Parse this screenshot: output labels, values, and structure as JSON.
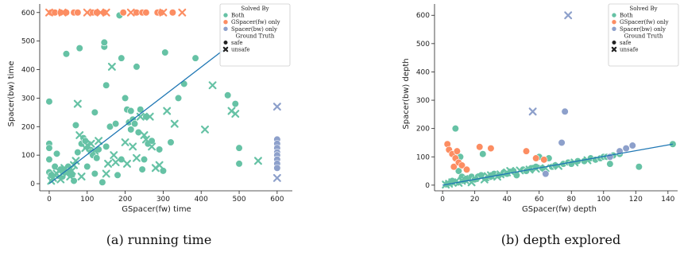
{
  "colors": {
    "both": "#66c2a5",
    "gspacer_only": "#fc8d62",
    "spacer_only": "#8da0cb",
    "regression": "#1f77b4",
    "axis": "#222222",
    "legend_border": "#cccccc"
  },
  "legend": {
    "title": "Solved By",
    "entries": [
      "Both",
      "GSpacer(fw) only",
      "Spacer(bw) only"
    ],
    "subtitle": "Ground Truth",
    "markers": [
      "safe",
      "unsafe"
    ]
  },
  "captions": [
    "(a)  running time",
    "(b)  depth explored"
  ],
  "chart_data": [
    {
      "type": "scatter",
      "title": "",
      "xlabel": "GSpacer(fw) time",
      "ylabel": "Spacer(bw) time",
      "xlim": [
        -25,
        640
      ],
      "ylim": [
        -25,
        630
      ],
      "xticks": [
        0,
        100,
        200,
        300,
        400,
        500,
        600
      ],
      "yticks": [
        0,
        100,
        200,
        300,
        400,
        500,
        600
      ],
      "regression": [
        [
          0,
          0
        ],
        [
          460,
          470
        ]
      ],
      "series": [
        {
          "name": "Both",
          "marker": "safe",
          "color_key": "both",
          "points": [
            [
              0,
              288
            ],
            [
              0,
              140
            ],
            [
              0,
              125
            ],
            [
              0,
              85
            ],
            [
              0,
              40
            ],
            [
              5,
              30
            ],
            [
              15,
              60
            ],
            [
              20,
              105
            ],
            [
              30,
              50
            ],
            [
              35,
              25
            ],
            [
              40,
              40
            ],
            [
              45,
              455
            ],
            [
              50,
              60
            ],
            [
              55,
              45
            ],
            [
              60,
              30
            ],
            [
              65,
              10
            ],
            [
              70,
              205
            ],
            [
              75,
              110
            ],
            [
              80,
              475
            ],
            [
              85,
              140
            ],
            [
              90,
              160
            ],
            [
              95,
              150
            ],
            [
              100,
              60
            ],
            [
              105,
              120
            ],
            [
              110,
              110
            ],
            [
              115,
              100
            ],
            [
              120,
              250
            ],
            [
              120,
              35
            ],
            [
              125,
              90
            ],
            [
              130,
              120
            ],
            [
              140,
              5
            ],
            [
              145,
              480
            ],
            [
              145,
              495
            ],
            [
              150,
              345
            ],
            [
              150,
              130
            ],
            [
              160,
              200
            ],
            [
              175,
              210
            ],
            [
              180,
              30
            ],
            [
              185,
              590
            ],
            [
              190,
              440
            ],
            [
              190,
              85
            ],
            [
              200,
              300
            ],
            [
              205,
              260
            ],
            [
              210,
              215
            ],
            [
              215,
              190
            ],
            [
              215,
              255
            ],
            [
              220,
              225
            ],
            [
              225,
              210
            ],
            [
              230,
              410
            ],
            [
              235,
              180
            ],
            [
              240,
              260
            ],
            [
              245,
              50
            ],
            [
              250,
              85
            ],
            [
              255,
              235
            ],
            [
              260,
              140
            ],
            [
              270,
              150
            ],
            [
              290,
              120
            ],
            [
              300,
              45
            ],
            [
              305,
              460
            ],
            [
              320,
              145
            ],
            [
              340,
              300
            ],
            [
              355,
              350
            ],
            [
              385,
              440
            ],
            [
              470,
              310
            ],
            [
              490,
              280
            ],
            [
              500,
              125
            ],
            [
              500,
              70
            ]
          ]
        },
        {
          "name": "Both",
          "marker": "unsafe",
          "color_key": "both",
          "points": [
            [
              5,
              10
            ],
            [
              10,
              20
            ],
            [
              15,
              30
            ],
            [
              20,
              35
            ],
            [
              25,
              45
            ],
            [
              30,
              15
            ],
            [
              40,
              55
            ],
            [
              45,
              35
            ],
            [
              55,
              25
            ],
            [
              60,
              45
            ],
            [
              65,
              65
            ],
            [
              70,
              80
            ],
            [
              75,
              280
            ],
            [
              80,
              170
            ],
            [
              85,
              25
            ],
            [
              95,
              125
            ],
            [
              100,
              135
            ],
            [
              110,
              140
            ],
            [
              120,
              115
            ],
            [
              130,
              150
            ],
            [
              150,
              35
            ],
            [
              155,
              70
            ],
            [
              165,
              410
            ],
            [
              170,
              100
            ],
            [
              175,
              75
            ],
            [
              200,
              145
            ],
            [
              205,
              70
            ],
            [
              220,
              130
            ],
            [
              230,
              90
            ],
            [
              240,
              235
            ],
            [
              250,
              170
            ],
            [
              255,
              155
            ],
            [
              265,
              235
            ],
            [
              270,
              130
            ],
            [
              280,
              55
            ],
            [
              290,
              65
            ],
            [
              310,
              255
            ],
            [
              330,
              210
            ],
            [
              410,
              190
            ],
            [
              430,
              345
            ],
            [
              480,
              255
            ],
            [
              490,
              245
            ],
            [
              550,
              80
            ]
          ]
        },
        {
          "name": "GSpacer(fw) only",
          "marker": "safe",
          "color_key": "gspacer_only",
          "points": [
            [
              5,
              600
            ],
            [
              15,
              600
            ],
            [
              30,
              600
            ],
            [
              45,
              600
            ],
            [
              65,
              600
            ],
            [
              75,
              600
            ],
            [
              110,
              600
            ],
            [
              115,
              600
            ],
            [
              125,
              600
            ],
            [
              145,
              600
            ],
            [
              195,
              600
            ],
            [
              230,
              600
            ],
            [
              245,
              600
            ],
            [
              255,
              600
            ],
            [
              285,
              600
            ],
            [
              295,
              600
            ],
            [
              325,
              600
            ]
          ]
        },
        {
          "name": "GSpacer(fw) only",
          "marker": "unsafe",
          "color_key": "gspacer_only",
          "points": [
            [
              0,
              600
            ],
            [
              35,
              600
            ],
            [
              100,
              600
            ],
            [
              135,
              600
            ],
            [
              150,
              600
            ],
            [
              215,
              600
            ],
            [
              300,
              600
            ],
            [
              350,
              600
            ]
          ]
        },
        {
          "name": "Spacer(bw) only",
          "marker": "safe",
          "color_key": "spacer_only",
          "points": [
            [
              600,
              155
            ],
            [
              600,
              140
            ],
            [
              600,
              125
            ],
            [
              600,
              110
            ],
            [
              600,
              100
            ],
            [
              600,
              85
            ],
            [
              600,
              70
            ],
            [
              600,
              55
            ]
          ]
        },
        {
          "name": "Spacer(bw) only",
          "marker": "unsafe",
          "color_key": "spacer_only",
          "points": [
            [
              600,
              270
            ],
            [
              600,
              20
            ]
          ]
        }
      ]
    },
    {
      "type": "scatter",
      "title": "",
      "xlabel": "GSpacer(fw) depth",
      "ylabel": "Spacer(bw) depth",
      "xlim": [
        -5,
        146
      ],
      "ylim": [
        -20,
        640
      ],
      "xticks": [
        0,
        20,
        40,
        60,
        80,
        100,
        120,
        140
      ],
      "yticks": [
        0,
        100,
        200,
        300,
        400,
        500,
        600
      ],
      "regression": [
        [
          0,
          0
        ],
        [
          143,
          145
        ]
      ],
      "series": [
        {
          "name": "Both",
          "marker": "safe",
          "color_key": "both",
          "points": [
            [
              3,
              5
            ],
            [
              5,
              10
            ],
            [
              6,
              15
            ],
            [
              8,
              200
            ],
            [
              9,
              100
            ],
            [
              10,
              50
            ],
            [
              11,
              100
            ],
            [
              12,
              30
            ],
            [
              14,
              20
            ],
            [
              16,
              25
            ],
            [
              18,
              30
            ],
            [
              20,
              20
            ],
            [
              22,
              30
            ],
            [
              24,
              35
            ],
            [
              25,
              110
            ],
            [
              28,
              25
            ],
            [
              30,
              30
            ],
            [
              32,
              40
            ],
            [
              35,
              35
            ],
            [
              38,
              45
            ],
            [
              40,
              40
            ],
            [
              44,
              50
            ],
            [
              46,
              35
            ],
            [
              50,
              55
            ],
            [
              52,
              50
            ],
            [
              55,
              60
            ],
            [
              58,
              65
            ],
            [
              60,
              100
            ],
            [
              62,
              60
            ],
            [
              66,
              95
            ],
            [
              68,
              65
            ],
            [
              70,
              70
            ],
            [
              75,
              75
            ],
            [
              78,
              80
            ],
            [
              80,
              75
            ],
            [
              84,
              85
            ],
            [
              88,
              85
            ],
            [
              92,
              95
            ],
            [
              95,
              90
            ],
            [
              98,
              95
            ],
            [
              100,
              100
            ],
            [
              102,
              100
            ],
            [
              104,
              75
            ],
            [
              106,
              105
            ],
            [
              110,
              110
            ],
            [
              122,
              65
            ],
            [
              143,
              145
            ]
          ]
        },
        {
          "name": "Both",
          "marker": "unsafe",
          "color_key": "both",
          "points": [
            [
              2,
              2
            ],
            [
              4,
              5
            ],
            [
              6,
              10
            ],
            [
              8,
              12
            ],
            [
              10,
              8
            ],
            [
              12,
              15
            ],
            [
              14,
              18
            ],
            [
              16,
              20
            ],
            [
              18,
              10
            ],
            [
              20,
              25
            ],
            [
              24,
              28
            ],
            [
              26,
              20
            ],
            [
              28,
              32
            ],
            [
              30,
              35
            ],
            [
              34,
              30
            ],
            [
              36,
              38
            ],
            [
              40,
              45
            ],
            [
              42,
              50
            ],
            [
              48,
              52
            ],
            [
              54,
              55
            ],
            [
              58,
              58
            ],
            [
              64,
              60
            ],
            [
              72,
              68
            ],
            [
              82,
              80
            ],
            [
              90,
              88
            ]
          ]
        },
        {
          "name": "GSpacer(fw) only",
          "marker": "safe",
          "color_key": "gspacer_only",
          "points": [
            [
              3,
              145
            ],
            [
              4,
              125
            ],
            [
              6,
              110
            ],
            [
              7,
              65
            ],
            [
              8,
              95
            ],
            [
              9,
              120
            ],
            [
              10,
              80
            ],
            [
              12,
              70
            ],
            [
              15,
              55
            ],
            [
              23,
              135
            ],
            [
              30,
              130
            ],
            [
              52,
              120
            ],
            [
              58,
              95
            ],
            [
              63,
              90
            ]
          ]
        },
        {
          "name": "Spacer(bw) only",
          "marker": "safe",
          "color_key": "spacer_only",
          "points": [
            [
              64,
              40
            ],
            [
              74,
              150
            ],
            [
              76,
              260
            ],
            [
              104,
              100
            ],
            [
              110,
              120
            ],
            [
              114,
              130
            ],
            [
              118,
              140
            ]
          ]
        },
        {
          "name": "Spacer(bw) only",
          "marker": "unsafe",
          "color_key": "spacer_only",
          "points": [
            [
              56,
              260
            ],
            [
              78,
              600
            ]
          ]
        }
      ]
    }
  ]
}
